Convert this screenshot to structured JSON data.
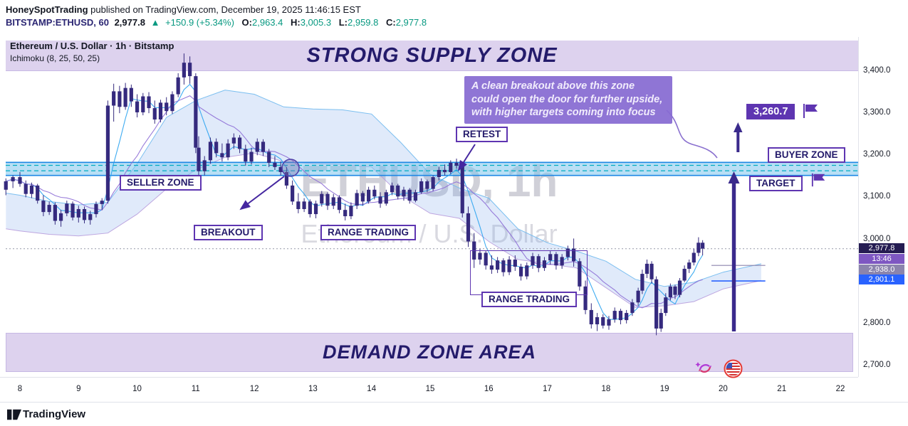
{
  "header": {
    "publisher": "HoneySpotTrading",
    "published_text": " published on TradingView.com, December 19, 2025 11:46:15 EST",
    "line2": {
      "symbol": "BITSTAMP:ETHUSD, 60",
      "last_price": "2,977.8",
      "arrow": "▲",
      "change": "+150.9 (+5.34%)",
      "o_label": "O:",
      "o": "2,963.4",
      "h_label": "H:",
      "h": "3,005.3",
      "l_label": "L:",
      "l": "2,959.8",
      "c_label": "C:",
      "c": "2,977.8"
    }
  },
  "legend": {
    "title": "Ethereum / U.S. Dollar · 1h · Bitstamp",
    "indicator": "Ichimoku (8, 25, 50, 25)"
  },
  "watermark": {
    "line1": "ETHUSD, 1h",
    "line2": "Ethereum / U.S. Dollar"
  },
  "zones": {
    "supply_banner": "STRONG SUPPLY ZONE",
    "demand_banner": "DEMAND ZONE AREA",
    "seller_label": "SELLER ZONE",
    "buyer_label": "BUYER ZONE",
    "breakout_label": "BREAKOUT",
    "retest_label": "RETEST",
    "range1_label": "RANGE TRADING",
    "range2_label": "RANGE TRADING",
    "target_label": "TARGET",
    "target_price": "3,260.7"
  },
  "note": {
    "lines": [
      "A clean breakout above this zone",
      "could open the door for further upside,",
      "with higher targets coming into focus"
    ]
  },
  "price_axis": {
    "ticks": [
      {
        "label": "3,400.0",
        "price": 3400
      },
      {
        "label": "3,300.0",
        "price": 3300
      },
      {
        "label": "3,200.0",
        "price": 3200
      },
      {
        "label": "3,100.0",
        "price": 3100
      },
      {
        "label": "3,000.0",
        "price": 3000
      },
      {
        "label": "2,800.0",
        "price": 2800
      },
      {
        "label": "2,700.0",
        "price": 2700
      }
    ],
    "tags": [
      {
        "text": "2,977.8",
        "bg": "#251c52"
      },
      {
        "text": "13:46",
        "bg": "#7e57c2"
      },
      {
        "text": "2,938.0",
        "bg": "#8b84ad"
      },
      {
        "text": "2,901.1",
        "bg": "#2962ff"
      }
    ]
  },
  "time_axis": {
    "labels": [
      "8",
      "9",
      "10",
      "11",
      "12",
      "13",
      "14",
      "15",
      "16",
      "17",
      "18",
      "19",
      "20",
      "21",
      "22"
    ]
  },
  "footer": {
    "brand": "TradingView"
  },
  "colors": {
    "candle": "#352a7e",
    "zone_fill": "#7fc4ec",
    "zone_line": "#1e88e5",
    "zone_dash": "#00acc1",
    "cloud_blue": "#64b5f6",
    "cloud_purple": "#b39ddb",
    "tenkan": "#2aa3ef",
    "kijun": "#8e6fd6",
    "flat_blue": "#2962ff",
    "flat_gray": "#8b84ad",
    "arrow_purple": "#3a2a8c",
    "accent_purple": "#5e35b1",
    "green": "#089981",
    "price_dotted": "#9598a8"
  },
  "chart_data": {
    "type": "candlestick",
    "symbol": "ETHUSD",
    "timeframe": "1h",
    "title": "Ethereum / U.S. Dollar · 1h · Bitstamp",
    "indicator": "Ichimoku (8, 25, 50, 25)",
    "x_unit": "December day number",
    "x_range": [
      7.7,
      22.3
    ],
    "y_range": [
      2673,
      3472
    ],
    "current_price": 2977.8,
    "resistance_zone": {
      "top": 3183,
      "bottom": 3152,
      "dashed_levels": [
        3176,
        3163
      ]
    },
    "supply_zone_above": 3400,
    "demand_zone_band": [
      2688,
      2778
    ],
    "target_price": 3260.7,
    "flat_lines": [
      {
        "price": 2901.1,
        "t1": 19.8,
        "t2": 20.72,
        "color_key": "flat_blue",
        "width": 1.6
      },
      {
        "price": 2938.0,
        "t1": 19.8,
        "t2": 20.72,
        "color_key": "flat_gray",
        "width": 1.1
      }
    ],
    "candles": [
      [
        7.76,
        3118,
        3145,
        3105,
        3138
      ],
      [
        7.88,
        3138,
        3152,
        3122,
        3148
      ],
      [
        8.0,
        3148,
        3160,
        3125,
        3132
      ],
      [
        8.1,
        3132,
        3140,
        3100,
        3108
      ],
      [
        8.2,
        3108,
        3135,
        3098,
        3128
      ],
      [
        8.3,
        3128,
        3132,
        3085,
        3092
      ],
      [
        8.4,
        3092,
        3105,
        3055,
        3065
      ],
      [
        8.5,
        3065,
        3090,
        3058,
        3082
      ],
      [
        8.6,
        3082,
        3088,
        3035,
        3044
      ],
      [
        8.7,
        3044,
        3070,
        3030,
        3062
      ],
      [
        8.8,
        3062,
        3092,
        3055,
        3085
      ],
      [
        8.9,
        3085,
        3090,
        3045,
        3052
      ],
      [
        9.0,
        3052,
        3080,
        3040,
        3072
      ],
      [
        9.1,
        3072,
        3078,
        3038,
        3046
      ],
      [
        9.2,
        3046,
        3068,
        3035,
        3060
      ],
      [
        9.3,
        3060,
        3090,
        3052,
        3084
      ],
      [
        9.4,
        3084,
        3098,
        3070,
        3092
      ],
      [
        9.5,
        3092,
        3330,
        3085,
        3318
      ],
      [
        9.6,
        3318,
        3370,
        3280,
        3352
      ],
      [
        9.7,
        3352,
        3365,
        3300,
        3315
      ],
      [
        9.8,
        3315,
        3372,
        3308,
        3360
      ],
      [
        9.9,
        3360,
        3368,
        3315,
        3328
      ],
      [
        10.0,
        3328,
        3345,
        3290,
        3302
      ],
      [
        10.1,
        3302,
        3348,
        3295,
        3340
      ],
      [
        10.2,
        3340,
        3350,
        3300,
        3312
      ],
      [
        10.3,
        3312,
        3330,
        3275,
        3285
      ],
      [
        10.4,
        3285,
        3332,
        3278,
        3325
      ],
      [
        10.5,
        3325,
        3338,
        3295,
        3305
      ],
      [
        10.6,
        3305,
        3352,
        3298,
        3345
      ],
      [
        10.7,
        3345,
        3395,
        3338,
        3385
      ],
      [
        10.8,
        3385,
        3442,
        3368,
        3420
      ],
      [
        10.9,
        3420,
        3435,
        3370,
        3388
      ],
      [
        11.0,
        3388,
        3395,
        3205,
        3218
      ],
      [
        11.05,
        3218,
        3245,
        3148,
        3162
      ],
      [
        11.15,
        3162,
        3198,
        3152,
        3188
      ],
      [
        11.25,
        3188,
        3242,
        3180,
        3232
      ],
      [
        11.35,
        3232,
        3240,
        3195,
        3205
      ],
      [
        11.45,
        3205,
        3228,
        3185,
        3195
      ],
      [
        11.55,
        3195,
        3238,
        3188,
        3228
      ],
      [
        11.65,
        3228,
        3252,
        3215,
        3242
      ],
      [
        11.75,
        3242,
        3248,
        3205,
        3215
      ],
      [
        11.85,
        3215,
        3225,
        3175,
        3185
      ],
      [
        11.95,
        3185,
        3218,
        3178,
        3208
      ],
      [
        12.05,
        3208,
        3240,
        3200,
        3232
      ],
      [
        12.15,
        3232,
        3238,
        3198,
        3208
      ],
      [
        12.25,
        3208,
        3215,
        3172,
        3182
      ],
      [
        12.35,
        3182,
        3198,
        3165,
        3172
      ],
      [
        12.45,
        3172,
        3185,
        3152,
        3160
      ],
      [
        12.55,
        3160,
        3172,
        3120,
        3128
      ],
      [
        12.65,
        3128,
        3140,
        3082,
        3090
      ],
      [
        12.75,
        3090,
        3110,
        3062,
        3072
      ],
      [
        12.85,
        3072,
        3098,
        3065,
        3090
      ],
      [
        12.95,
        3090,
        3095,
        3052,
        3060
      ],
      [
        13.05,
        3060,
        3092,
        3050,
        3085
      ],
      [
        13.15,
        3085,
        3115,
        3078,
        3108
      ],
      [
        13.25,
        3108,
        3112,
        3070,
        3080
      ],
      [
        13.35,
        3080,
        3108,
        3072,
        3100
      ],
      [
        13.45,
        3100,
        3105,
        3062,
        3070
      ],
      [
        13.55,
        3070,
        3085,
        3045,
        3055
      ],
      [
        13.65,
        3055,
        3088,
        3048,
        3080
      ],
      [
        13.75,
        3080,
        3118,
        3072,
        3110
      ],
      [
        13.85,
        3110,
        3115,
        3080,
        3090
      ],
      [
        13.95,
        3090,
        3125,
        3085,
        3118
      ],
      [
        14.05,
        3118,
        3128,
        3095,
        3102
      ],
      [
        14.15,
        3102,
        3112,
        3075,
        3085
      ],
      [
        14.25,
        3085,
        3118,
        3080,
        3112
      ],
      [
        14.35,
        3112,
        3135,
        3105,
        3128
      ],
      [
        14.45,
        3128,
        3132,
        3095,
        3102
      ],
      [
        14.55,
        3102,
        3125,
        3092,
        3118
      ],
      [
        14.65,
        3118,
        3122,
        3085,
        3092
      ],
      [
        14.75,
        3092,
        3118,
        3088,
        3112
      ],
      [
        14.85,
        3112,
        3145,
        3108,
        3138
      ],
      [
        14.95,
        3138,
        3142,
        3112,
        3120
      ],
      [
        15.05,
        3120,
        3152,
        3115,
        3148
      ],
      [
        15.15,
        3148,
        3172,
        3140,
        3165
      ],
      [
        15.25,
        3165,
        3178,
        3152,
        3160
      ],
      [
        15.35,
        3160,
        3188,
        3155,
        3182
      ],
      [
        15.45,
        3182,
        3192,
        3168,
        3175
      ],
      [
        15.55,
        3175,
        3180,
        3052,
        3062
      ],
      [
        15.65,
        3062,
        3078,
        2982,
        2995
      ],
      [
        15.75,
        2995,
        3015,
        2932,
        2952
      ],
      [
        15.85,
        2952,
        2978,
        2940,
        2968
      ],
      [
        15.95,
        2968,
        2972,
        2928,
        2938
      ],
      [
        16.05,
        2938,
        2962,
        2918,
        2928
      ],
      [
        16.15,
        2928,
        2958,
        2920,
        2950
      ],
      [
        16.25,
        2950,
        2955,
        2912,
        2922
      ],
      [
        16.35,
        2922,
        2960,
        2915,
        2952
      ],
      [
        16.45,
        2952,
        2962,
        2925,
        2935
      ],
      [
        16.55,
        2935,
        2942,
        2902,
        2912
      ],
      [
        16.65,
        2912,
        2945,
        2905,
        2938
      ],
      [
        16.75,
        2938,
        2968,
        2930,
        2960
      ],
      [
        16.85,
        2960,
        2965,
        2922,
        2932
      ],
      [
        16.95,
        2932,
        2958,
        2925,
        2950
      ],
      [
        17.05,
        2950,
        2972,
        2940,
        2965
      ],
      [
        17.15,
        2965,
        2970,
        2928,
        2938
      ],
      [
        17.25,
        2938,
        2965,
        2930,
        2958
      ],
      [
        17.35,
        2958,
        2985,
        2950,
        2978
      ],
      [
        17.45,
        2978,
        3002,
        2935,
        2948
      ],
      [
        17.55,
        2948,
        2955,
        2878,
        2888
      ],
      [
        17.65,
        2888,
        2902,
        2822,
        2832
      ],
      [
        17.75,
        2832,
        2848,
        2788,
        2798
      ],
      [
        17.85,
        2798,
        2825,
        2782,
        2815
      ],
      [
        17.95,
        2815,
        2822,
        2788,
        2795
      ],
      [
        18.05,
        2795,
        2818,
        2785,
        2810
      ],
      [
        18.15,
        2810,
        2838,
        2802,
        2830
      ],
      [
        18.25,
        2830,
        2835,
        2798,
        2808
      ],
      [
        18.35,
        2808,
        2832,
        2800,
        2825
      ],
      [
        18.45,
        2825,
        2858,
        2818,
        2850
      ],
      [
        18.55,
        2850,
        2885,
        2842,
        2878
      ],
      [
        18.62,
        2878,
        2928,
        2870,
        2918
      ],
      [
        18.7,
        2918,
        2952,
        2908,
        2942
      ],
      [
        18.78,
        2942,
        2948,
        2895,
        2905
      ],
      [
        18.86,
        2905,
        2912,
        2772,
        2788
      ],
      [
        18.94,
        2788,
        2835,
        2780,
        2825
      ],
      [
        19.02,
        2825,
        2872,
        2818,
        2862
      ],
      [
        19.1,
        2862,
        2895,
        2855,
        2888
      ],
      [
        19.18,
        2888,
        2892,
        2858,
        2868
      ],
      [
        19.26,
        2868,
        2908,
        2862,
        2902
      ],
      [
        19.34,
        2902,
        2938,
        2898,
        2930
      ],
      [
        19.42,
        2930,
        2952,
        2920,
        2945
      ],
      [
        19.5,
        2945,
        2978,
        2938,
        2968
      ],
      [
        19.58,
        2968,
        3005,
        2960,
        2992
      ],
      [
        19.65,
        2992,
        2998,
        2962,
        2978
      ]
    ],
    "cloud": [
      [
        7.76,
        3110,
        3025
      ],
      [
        8.0,
        3105,
        3020
      ],
      [
        8.5,
        3090,
        3012
      ],
      [
        9.0,
        3082,
        3008
      ],
      [
        9.5,
        3088,
        3015
      ],
      [
        10.0,
        3180,
        3060
      ],
      [
        10.5,
        3290,
        3120
      ],
      [
        11.0,
        3330,
        3165
      ],
      [
        11.5,
        3355,
        3195
      ],
      [
        12.0,
        3345,
        3205
      ],
      [
        12.5,
        3315,
        3185
      ],
      [
        13.0,
        3310,
        3180
      ],
      [
        13.5,
        3308,
        3178
      ],
      [
        14.0,
        3298,
        3172
      ],
      [
        14.5,
        3230,
        3105
      ],
      [
        15.0,
        3155,
        3062
      ],
      [
        15.5,
        3122,
        3050
      ],
      [
        16.0,
        3098,
        2995
      ],
      [
        16.5,
        3025,
        2952
      ],
      [
        17.0,
        2992,
        2942
      ],
      [
        17.5,
        2972,
        2932
      ],
      [
        18.0,
        2948,
        2885
      ],
      [
        18.5,
        2905,
        2838
      ],
      [
        19.0,
        2888,
        2842
      ],
      [
        19.5,
        2898,
        2852
      ],
      [
        20.0,
        2922,
        2882
      ],
      [
        20.65,
        2942,
        2902
      ]
    ]
  }
}
